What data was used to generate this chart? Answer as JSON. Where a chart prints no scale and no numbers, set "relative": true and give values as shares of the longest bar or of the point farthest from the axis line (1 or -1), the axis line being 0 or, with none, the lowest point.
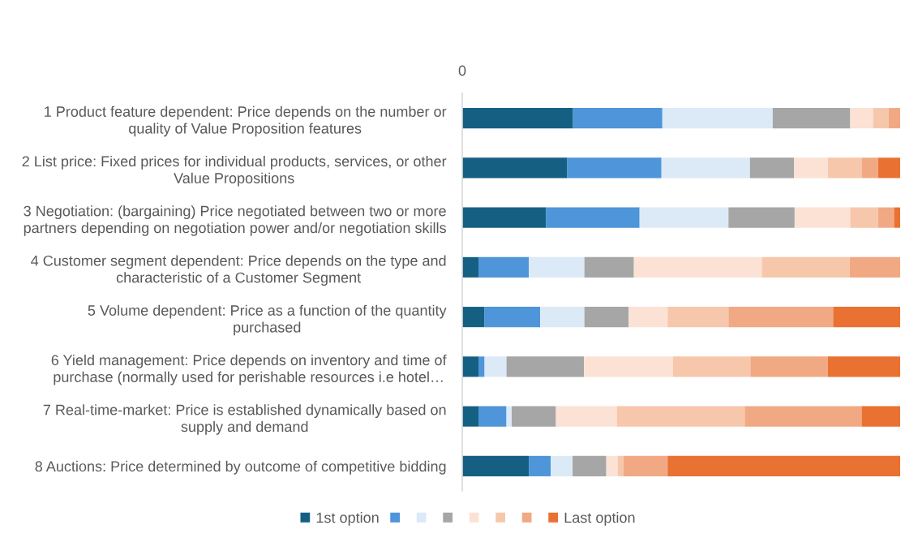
{
  "chart_data": {
    "type": "bar",
    "orientation": "horizontal",
    "stacked": true,
    "relative": true,
    "legend": "bottom",
    "categories": [
      "1 Product feature dependent: Price depends on the number or\nquality of Value Proposition features",
      "2 List price: Fixed prices for individual products, services, or other\nValue Propositions",
      "3 Negotiation: (bargaining) Price negotiated between two or more\npartners depending on negotiation power and/or negotiation skills",
      "4 Customer segment dependent: Price depends on the type and\ncharacteristic of a Customer Segment",
      "5 Volume dependent: Price as a function of the quantity\npurchased",
      "6 Yield management: Price depends on inventory and time of\npurchase (normally used for perishable resources i.e hotel…",
      "7 Real-time-market: Price is established dynamically based on\nsupply and demand",
      "8 Auctions: Price determined by outcome of competitive bidding"
    ],
    "series": [
      {
        "name": "1st option",
        "color": "#156082",
        "values": [
          0.253,
          0.24,
          0.191,
          0.037,
          0.051,
          0.037,
          0.037,
          0.152
        ]
      },
      {
        "color": "#4e95d9",
        "values": [
          0.204,
          0.215,
          0.214,
          0.115,
          0.127,
          0.014,
          0.064,
          0.05
        ]
      },
      {
        "color": "#dceaf7",
        "values": [
          0.252,
          0.202,
          0.203,
          0.127,
          0.101,
          0.05,
          0.012,
          0.05
        ]
      },
      {
        "color": "#a6a6a6",
        "values": [
          0.177,
          0.101,
          0.151,
          0.113,
          0.101,
          0.177,
          0.101,
          0.077
        ]
      },
      {
        "color": "#fbe2d5",
        "values": [
          0.052,
          0.077,
          0.127,
          0.292,
          0.089,
          0.203,
          0.139,
          0.026
        ]
      },
      {
        "color": "#f7c7ac",
        "values": [
          0.036,
          0.077,
          0.064,
          0.201,
          0.139,
          0.177,
          0.292,
          0.013
        ]
      },
      {
        "color": "#f1a983",
        "values": [
          0.026,
          0.038,
          0.036,
          0.115,
          0.239,
          0.177,
          0.267,
          0.101
        ]
      },
      {
        "name": "Last option",
        "color": "#e97132",
        "values": [
          0,
          0.05,
          0.014,
          0,
          0.153,
          0.165,
          0.088,
          0.531
        ]
      }
    ],
    "annotations": [
      "0"
    ]
  }
}
